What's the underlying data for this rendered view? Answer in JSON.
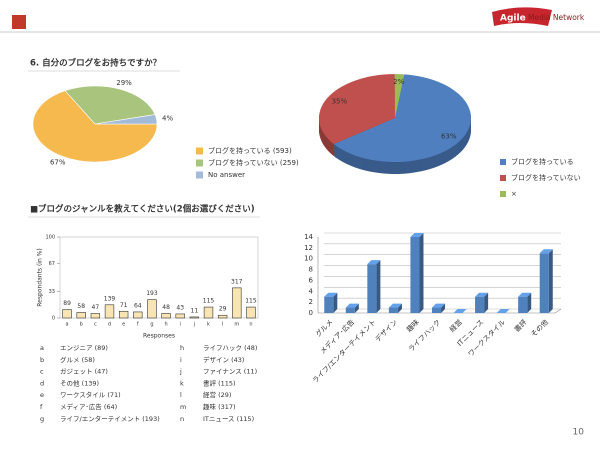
{
  "header": {
    "logo_a": "Agile",
    "logo_b": "Media Network"
  },
  "heading_1": "6. 自分のブログをお持ちですか？",
  "heading_2": "■ブログのジャンルを教えてください(2個お選びください)",
  "page_number": "10",
  "chart_data": [
    {
      "type": "pie",
      "categories": [
        "ブログを持っている (593)",
        "ブログを持っていない (259)",
        "No answer"
      ],
      "values": [
        67,
        29,
        4
      ],
      "value_labels": [
        "67%",
        "29%",
        "4%"
      ],
      "colors": [
        "#f5b94e",
        "#a9c47c",
        "#a3bad8"
      ]
    },
    {
      "type": "pie",
      "three_d": true,
      "categories": [
        "ブログを持っている",
        "ブログを持っていない",
        "×"
      ],
      "values": [
        63,
        35,
        2
      ],
      "value_labels": [
        "63%",
        "35%",
        "2%"
      ],
      "colors": [
        "#4f7fbf",
        "#c0504d",
        "#9bbb59"
      ]
    },
    {
      "type": "bar",
      "categories": [
        "a",
        "b",
        "c",
        "d",
        "e",
        "f",
        "g",
        "h",
        "i",
        "j",
        "k",
        "l",
        "m",
        "n"
      ],
      "values": [
        10.4,
        6.8,
        5.5,
        16.3,
        8.3,
        7.5,
        22.7,
        5.6,
        5.0,
        1.3,
        13.5,
        3.4,
        37.2,
        13.5
      ],
      "bar_labels": [
        89,
        58,
        47,
        139,
        71,
        64,
        193,
        48,
        43,
        11,
        115,
        29,
        317,
        115
      ],
      "color": "#f9e4b4",
      "ylim": [
        0,
        100
      ],
      "yticks": [
        0,
        33,
        67,
        100
      ],
      "x_label": "Responses",
      "y_label": "Respondants (in %)",
      "key": [
        [
          "a",
          "エンジニア (89)"
        ],
        [
          "b",
          "グルメ (58)"
        ],
        [
          "c",
          "ガジェット (47)"
        ],
        [
          "d",
          "その他 (139)"
        ],
        [
          "e",
          "ワークスタイル (71)"
        ],
        [
          "f",
          "メディア･広告 (64)"
        ],
        [
          "g",
          "ライフ/エンターテイメント (193)"
        ],
        [
          "h",
          "ライフハック (48)"
        ],
        [
          "i",
          "デザイン (43)"
        ],
        [
          "j",
          "ファイナンス (11)"
        ],
        [
          "k",
          "書評 (115)"
        ],
        [
          "l",
          "経営 (29)"
        ],
        [
          "m",
          "趣味 (317)"
        ],
        [
          "n",
          "ITニュース (115)"
        ]
      ]
    },
    {
      "type": "bar",
      "three_d": true,
      "categories": [
        "グルメ",
        "メディア･広告",
        "ライフ/エンターテイメント",
        "デザイン",
        "趣味",
        "ライフハック",
        "経営",
        "ITニュース",
        "ワークスタイル",
        "書評",
        "その他"
      ],
      "values": [
        3,
        1,
        9,
        1,
        14,
        1,
        0,
        3,
        0,
        3,
        11
      ],
      "color": "#4f81bd",
      "ylim": [
        0,
        14
      ],
      "yticks": [
        0,
        2,
        4,
        6,
        8,
        10,
        12,
        14
      ],
      "grid": true
    }
  ]
}
